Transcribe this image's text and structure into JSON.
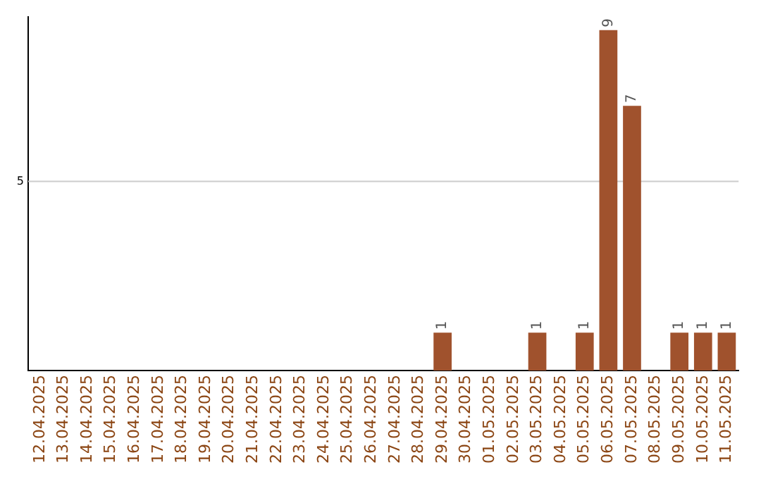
{
  "chart_data": {
    "type": "bar",
    "categories": [
      "12.04.2025",
      "13.04.2025",
      "14.04.2025",
      "15.04.2025",
      "16.04.2025",
      "17.04.2025",
      "18.04.2025",
      "19.04.2025",
      "20.04.2025",
      "21.04.2025",
      "22.04.2025",
      "23.04.2025",
      "24.04.2025",
      "25.04.2025",
      "26.04.2025",
      "27.04.2025",
      "28.04.2025",
      "29.04.2025",
      "30.04.2025",
      "01.05.2025",
      "02.05.2025",
      "03.05.2025",
      "04.05.2025",
      "05.05.2025",
      "06.05.2025",
      "07.05.2025",
      "08.05.2025",
      "09.05.2025",
      "10.05.2025",
      "11.05.2025"
    ],
    "values": [
      null,
      null,
      null,
      null,
      null,
      null,
      null,
      null,
      null,
      null,
      null,
      null,
      null,
      null,
      null,
      null,
      null,
      1,
      null,
      null,
      null,
      1,
      null,
      1,
      9,
      7,
      null,
      1,
      1,
      1
    ],
    "data_labels": true,
    "ylim": [
      0,
      9.35
    ],
    "ref_lines": [
      {
        "axis": "y",
        "value": 5,
        "label": "5",
        "color": "#cccccc"
      }
    ],
    "color": "#a0522d",
    "legend": false
  }
}
